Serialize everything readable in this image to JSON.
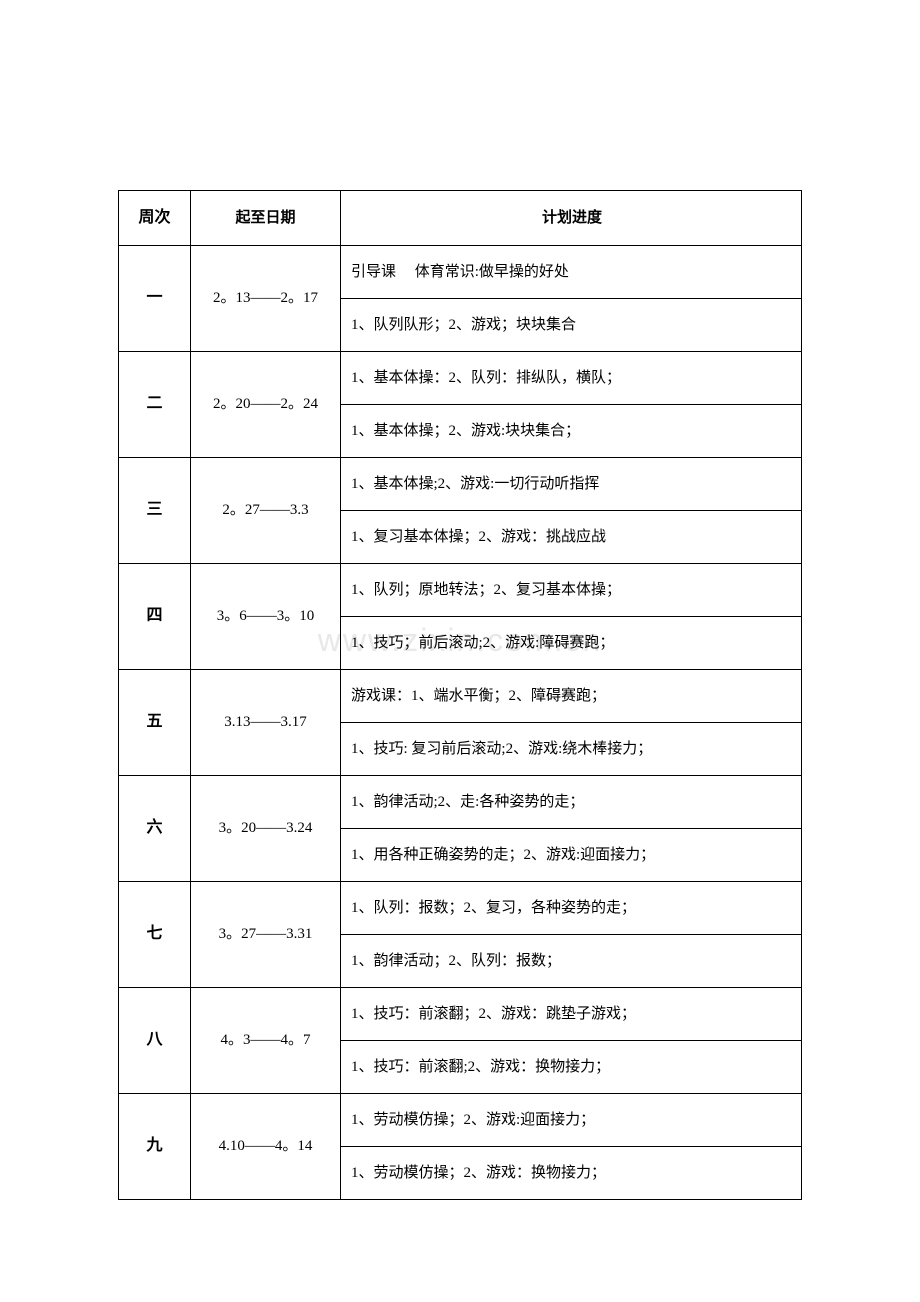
{
  "watermark": "www.zixin.com.cn",
  "headers": {
    "week": "周次",
    "dates": "起至日期",
    "plan": "计划进度"
  },
  "rows": [
    {
      "week": "一",
      "dates": "2。13——2。17",
      "plans": [
        "引导课　 体育常识:做早操的好处",
        "1、队列队形；2、游戏；块块集合"
      ]
    },
    {
      "week": "二",
      "dates": "2。20——2。24",
      "plans": [
        "1、基本体操：2、队列：排纵队，横队；",
        "1、基本体操；2、游戏:块块集合；"
      ]
    },
    {
      "week": "三",
      "dates": "2。27——3.3",
      "plans": [
        "1、基本体操;2、游戏:一切行动听指挥",
        "1、复习基本体操；2、游戏：挑战应战"
      ]
    },
    {
      "week": "四",
      "dates": "3。6——3。10",
      "plans": [
        "1、队列；原地转法；2、复习基本体操；",
        "1、技巧；前后滚动;2、游戏:障碍赛跑；"
      ]
    },
    {
      "week": "五",
      "dates": "3.13——3.17",
      "plans": [
        "游戏课：1、端水平衡；2、障碍赛跑；",
        "1、技巧: 复习前后滚动;2、游戏:绕木棒接力；"
      ]
    },
    {
      "week": "六",
      "dates": "3。20——3.24",
      "plans": [
        "1、韵律活动;2、走:各种姿势的走；",
        "1、用各种正确姿势的走；2、游戏:迎面接力；"
      ]
    },
    {
      "week": "七",
      "dates": "3。27——3.31",
      "plans": [
        "1、队列：报数；2、复习，各种姿势的走；",
        "1、韵律活动；2、队列：报数；"
      ]
    },
    {
      "week": "八",
      "dates": "4。3——4。7",
      "plans": [
        "1、技巧：前滚翻；2、游戏：跳垫子游戏；",
        "1、技巧：前滚翻;2、游戏：换物接力；"
      ]
    },
    {
      "week": "九",
      "dates": "4.10——4。14",
      "plans": [
        "1、劳动模仿操；2、游戏:迎面接力；",
        "1、劳动模仿操；2、游戏：换物接力；"
      ]
    }
  ]
}
